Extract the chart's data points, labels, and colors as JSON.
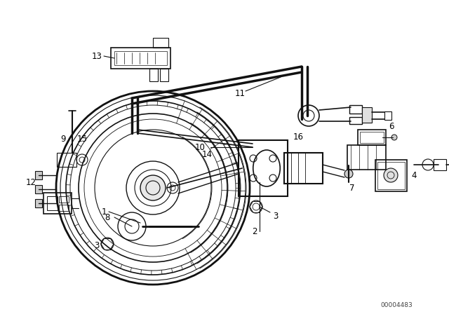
{
  "bg_color": "#ffffff",
  "line_color": "#111111",
  "part_number_text": "00004483",
  "figsize": [
    6.4,
    4.48
  ],
  "dpi": 100
}
